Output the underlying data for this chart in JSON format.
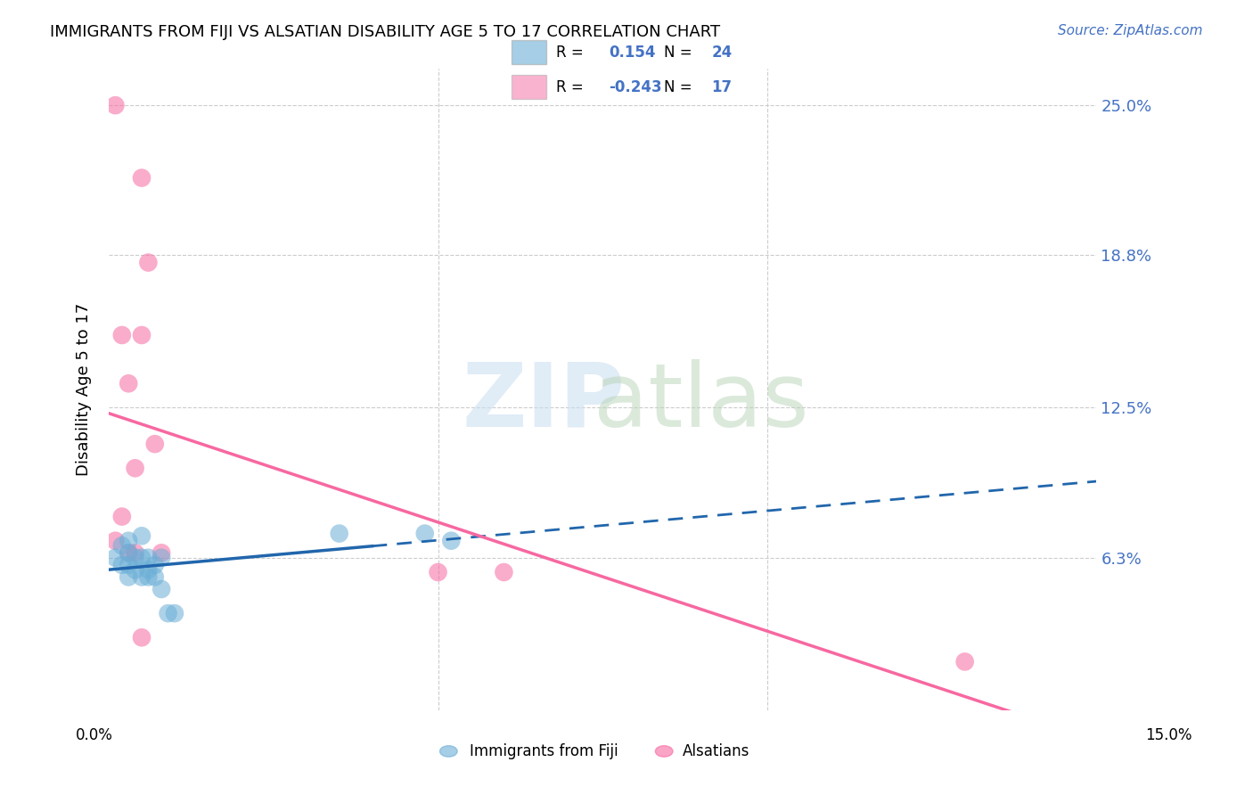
{
  "title": "IMMIGRANTS FROM FIJI VS ALSATIAN DISABILITY AGE 5 TO 17 CORRELATION CHART",
  "source": "Source: ZipAtlas.com",
  "ylabel": "Disability Age 5 to 17",
  "ytick_labels": [
    "6.3%",
    "12.5%",
    "18.8%",
    "25.0%"
  ],
  "ytick_values": [
    0.063,
    0.125,
    0.188,
    0.25
  ],
  "xlim": [
    0.0,
    0.15
  ],
  "ylim": [
    0.0,
    0.265
  ],
  "legend_blue_r": "0.154",
  "legend_blue_n": "24",
  "legend_pink_r": "-0.243",
  "legend_pink_n": "17",
  "blue_color": "#6baed6",
  "pink_color": "#f768a1",
  "blue_line_color": "#2166ac",
  "pink_line_color": "#f768a1",
  "fiji_x": [
    0.001,
    0.002,
    0.002,
    0.003,
    0.003,
    0.003,
    0.003,
    0.004,
    0.004,
    0.005,
    0.005,
    0.005,
    0.006,
    0.006,
    0.006,
    0.007,
    0.007,
    0.008,
    0.008,
    0.009,
    0.01,
    0.035,
    0.048,
    0.052
  ],
  "fiji_y": [
    0.063,
    0.068,
    0.06,
    0.07,
    0.06,
    0.055,
    0.065,
    0.063,
    0.058,
    0.072,
    0.063,
    0.055,
    0.063,
    0.058,
    0.055,
    0.06,
    0.055,
    0.05,
    0.063,
    0.04,
    0.04,
    0.073,
    0.073,
    0.07
  ],
  "alsatian_x": [
    0.001,
    0.002,
    0.002,
    0.003,
    0.003,
    0.004,
    0.004,
    0.005,
    0.005,
    0.005,
    0.006,
    0.007,
    0.008,
    0.05,
    0.06,
    0.13,
    0.001
  ],
  "alsatian_y": [
    0.07,
    0.155,
    0.08,
    0.135,
    0.065,
    0.1,
    0.065,
    0.22,
    0.155,
    0.03,
    0.185,
    0.11,
    0.065,
    0.057,
    0.057,
    0.02,
    0.25
  ]
}
